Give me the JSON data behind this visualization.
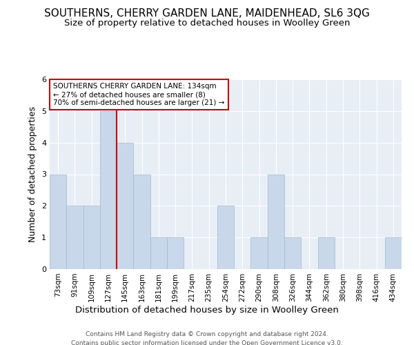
{
  "title": "SOUTHERNS, CHERRY GARDEN LANE, MAIDENHEAD, SL6 3QG",
  "subtitle": "Size of property relative to detached houses in Woolley Green",
  "xlabel": "Distribution of detached houses by size in Woolley Green",
  "ylabel": "Number of detached properties",
  "bin_labels": [
    "73sqm",
    "91sqm",
    "109sqm",
    "127sqm",
    "145sqm",
    "163sqm",
    "181sqm",
    "199sqm",
    "217sqm",
    "235sqm",
    "254sqm",
    "272sqm",
    "290sqm",
    "308sqm",
    "326sqm",
    "344sqm",
    "362sqm",
    "380sqm",
    "398sqm",
    "416sqm",
    "434sqm"
  ],
  "bar_heights": [
    3,
    2,
    2,
    5,
    4,
    3,
    1,
    1,
    0,
    0,
    2,
    0,
    1,
    3,
    1,
    0,
    1,
    0,
    0,
    0,
    1
  ],
  "bar_color": "#c8d8ea",
  "bar_edge_color": "#a0b8cc",
  "bar_width": 1.0,
  "vline_x": 3.5,
  "vline_color": "#cc0000",
  "annotation_text": "SOUTHERNS CHERRY GARDEN LANE: 134sqm\n← 27% of detached houses are smaller (8)\n70% of semi-detached houses are larger (21) →",
  "annotation_box_color": "#ffffff",
  "annotation_box_edge_color": "#cc0000",
  "ylim": [
    0,
    6
  ],
  "yticks": [
    0,
    1,
    2,
    3,
    4,
    5,
    6
  ],
  "footer_text": "Contains HM Land Registry data © Crown copyright and database right 2024.\nContains public sector information licensed under the Open Government Licence v3.0.",
  "background_color": "#ffffff",
  "plot_bg_color": "#e8eef5",
  "grid_color": "#ffffff",
  "title_fontsize": 11,
  "subtitle_fontsize": 9.5,
  "ylabel_fontsize": 9,
  "xlabel_fontsize": 9.5,
  "footer_fontsize": 6.5
}
